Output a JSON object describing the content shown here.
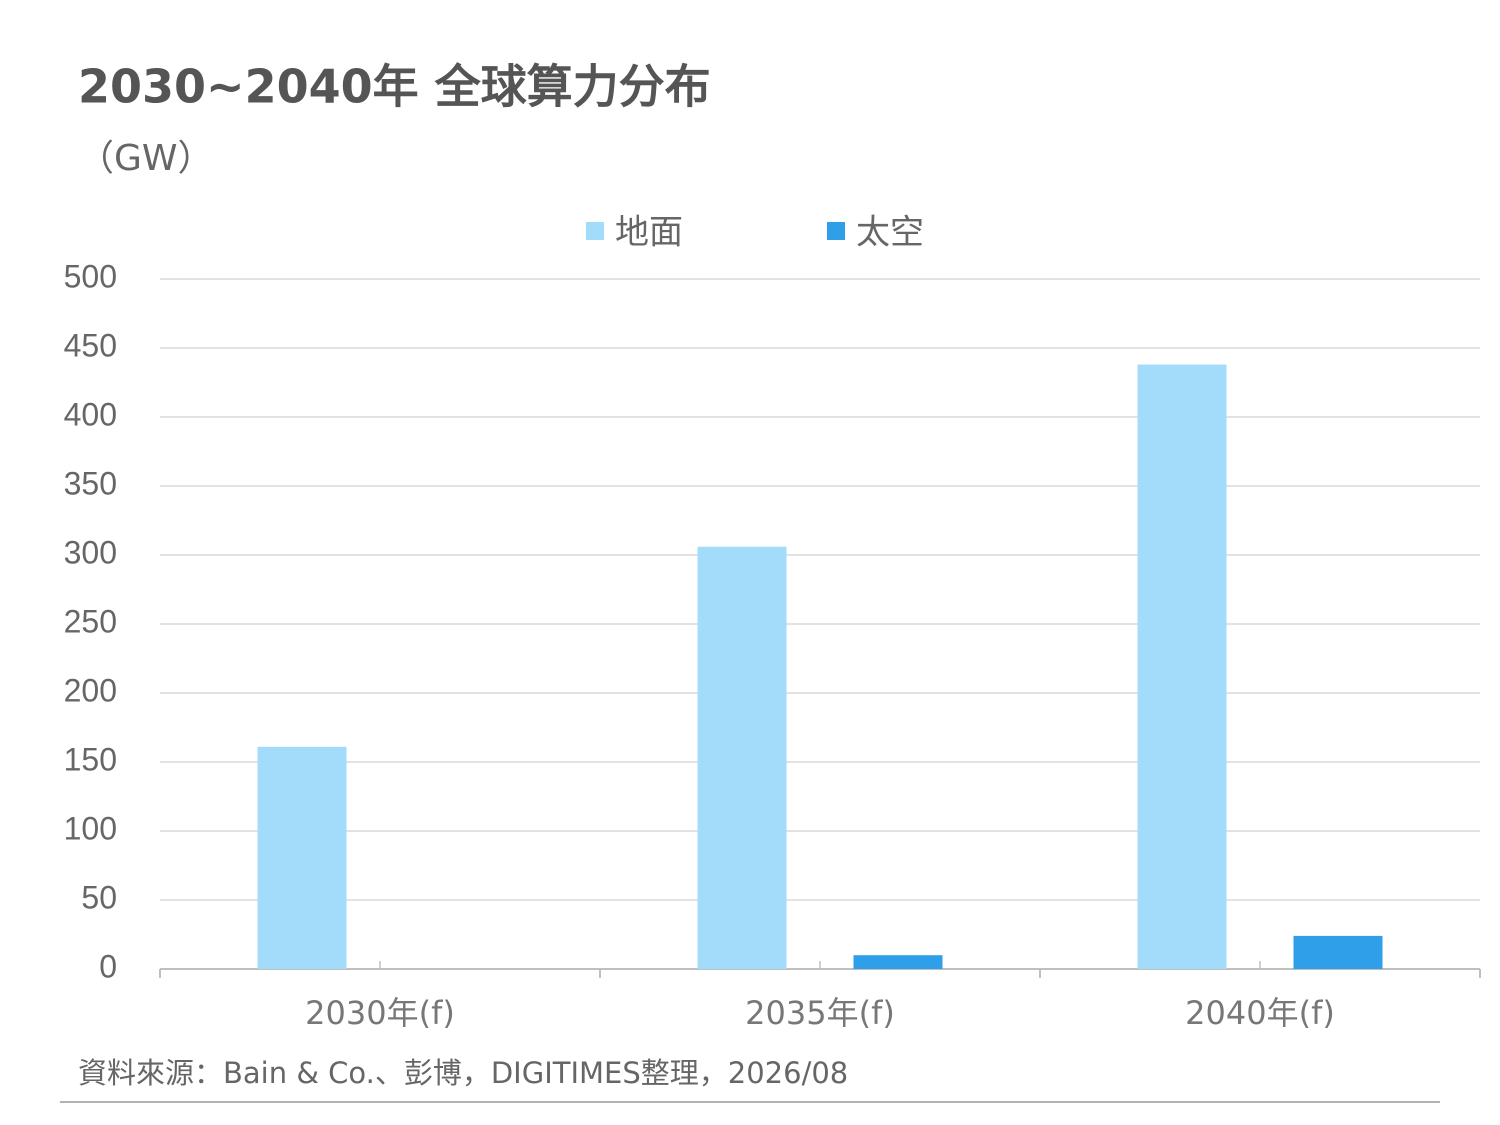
{
  "chart_data": {
    "type": "bar",
    "title": "2030~2040年 全球算力分布",
    "subtitle": "（GW）",
    "categories": [
      "2030年(f)",
      "2035年(f)",
      "2040年(f)"
    ],
    "series": [
      {
        "name": "地面",
        "color": "#a3dcfa",
        "values": [
          161,
          306,
          438
        ]
      },
      {
        "name": "太空",
        "color": "#2f9fea",
        "values": [
          0,
          10,
          24
        ]
      }
    ],
    "ylim": [
      0,
      500
    ],
    "yticks": [
      0,
      50,
      100,
      150,
      200,
      250,
      300,
      350,
      400,
      450,
      500
    ],
    "grid": true,
    "source": "資料來源：Bain & Co.、彭博，DIGITIMES整理，2026/08"
  }
}
